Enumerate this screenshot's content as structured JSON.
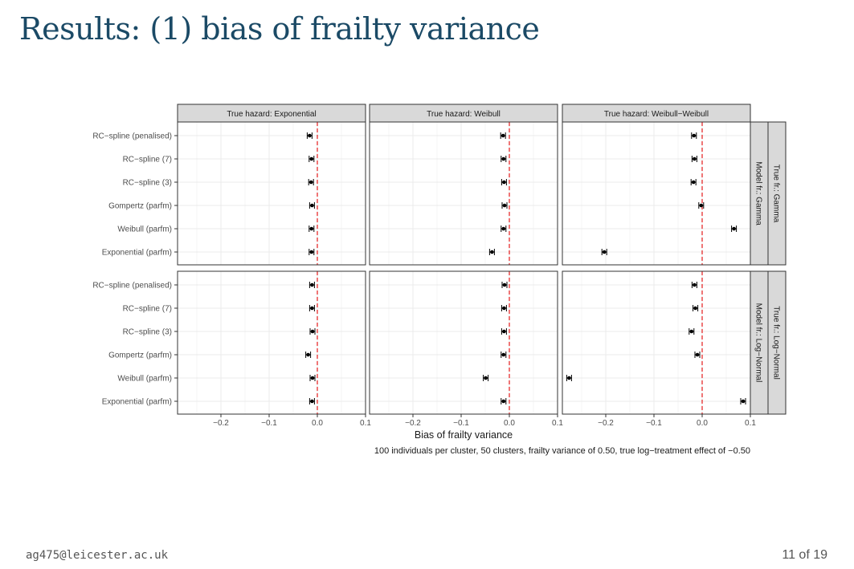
{
  "slide": {
    "title": "Results: (1) bias of frailty variance",
    "footer_left": "ag475@leicester.ac.uk",
    "footer_right": "11 of 19"
  },
  "chart_data": {
    "type": "scatter",
    "subtype": "faceted point-range (dot with error bars)",
    "xlabel": "Bias of frailty variance",
    "caption": "100 individuals per cluster, 50 clusters, frailty variance of 0.50, true log−treatment effect of −0.50",
    "xlim": [
      -0.29,
      0.1
    ],
    "xticks": [
      -0.2,
      -0.1,
      0.0,
      0.1
    ],
    "xtick_labels": [
      "−0.2",
      "−0.1",
      "0.0",
      "0.1"
    ],
    "reference_line": {
      "x": 0,
      "style": "dashed",
      "color": "#e41a1c"
    },
    "grid": true,
    "models": [
      "RC−spline (penalised)",
      "RC−spline (7)",
      "RC−spline (3)",
      "Gompertz (parfm)",
      "Weibull (parfm)",
      "Exponential (parfm)"
    ],
    "column_facets": [
      "True hazard: Exponential",
      "True hazard: Weibull",
      "True hazard: Weibull−Weibull"
    ],
    "row_facets": [
      {
        "true_frailty": "True fr.: Gamma",
        "model_frailty": "Model fr.: Gamma"
      },
      {
        "true_frailty": "True fr.: Log−Normal",
        "model_frailty": "Model fr.: Log−Normal"
      }
    ],
    "panels": [
      [
        {
          "estimates": [
            -0.016,
            -0.012,
            -0.013,
            -0.011,
            -0.012,
            -0.012
          ],
          "half_width": 0.005
        },
        {
          "estimates": [
            -0.013,
            -0.012,
            -0.011,
            -0.01,
            -0.012,
            -0.036
          ],
          "half_width": 0.005
        },
        {
          "estimates": [
            -0.017,
            -0.016,
            -0.018,
            -0.002,
            0.066,
            -0.203
          ],
          "half_width": 0.005
        }
      ],
      [
        {
          "estimates": [
            -0.011,
            -0.011,
            -0.01,
            -0.019,
            -0.01,
            -0.011
          ],
          "half_width": 0.005
        },
        {
          "estimates": [
            -0.01,
            -0.011,
            -0.011,
            -0.012,
            -0.049,
            -0.012
          ],
          "half_width": 0.005
        },
        {
          "estimates": [
            -0.016,
            -0.014,
            -0.022,
            -0.01,
            -0.276,
            0.085
          ],
          "half_width": 0.005
        }
      ]
    ],
    "colors": {
      "strip_fill": "#d9d9d9",
      "panel_border": "#333333",
      "grid_major": "#ebebeb",
      "grid_minor": "#f5f5f5",
      "points": "#000000"
    }
  }
}
